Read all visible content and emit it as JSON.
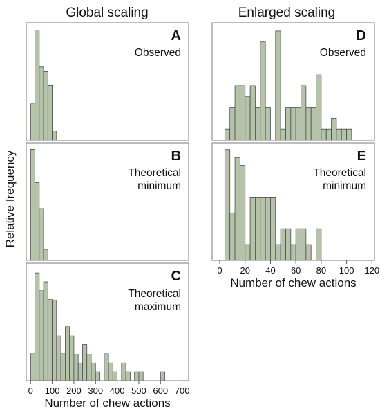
{
  "figure": {
    "left_title": "Global scaling",
    "right_title": "Enlarged scaling",
    "ylabel": "Relative frequency",
    "bar_color": "#b5c3ab",
    "bar_edge": "#4a4a4a"
  },
  "chart_data": [
    {
      "id": "A",
      "type": "bar",
      "letter": "A",
      "label_lines": [
        "Observed"
      ],
      "xlabel": "",
      "xlim": [
        -20,
        730
      ],
      "ymax": 0.25,
      "bin_width": 20,
      "bins": [
        0,
        20,
        40,
        60,
        80,
        100
      ],
      "values": [
        0.08,
        0.24,
        0.16,
        0.15,
        0.12,
        0.02
      ]
    },
    {
      "id": "B",
      "type": "bar",
      "letter": "B",
      "label_lines": [
        "Theoretical",
        "minimum"
      ],
      "xlabel": "",
      "xlim": [
        -20,
        730
      ],
      "ymax": 0.31,
      "bin_width": 20,
      "bins": [
        0,
        20,
        40,
        60
      ],
      "values": [
        0.3,
        0.21,
        0.14,
        0.03
      ]
    },
    {
      "id": "C",
      "type": "bar",
      "letter": "C",
      "label_lines": [
        "Theoretical",
        "maximum"
      ],
      "xlabel": "Number of chew actions",
      "xlim": [
        -20,
        730
      ],
      "ymax": 0.155,
      "bin_width": 20,
      "bins": [
        0,
        20,
        40,
        60,
        80,
        100,
        120,
        140,
        160,
        180,
        200,
        220,
        240,
        260,
        280,
        300,
        320,
        340,
        360,
        380,
        400,
        420,
        440,
        460,
        480,
        500,
        520,
        540,
        560,
        580,
        600,
        620
      ],
      "values": [
        0.0365,
        0.1455,
        0.1215,
        0.1335,
        0.1095,
        0.109,
        0.0605,
        0.0365,
        0.073,
        0.0605,
        0.036,
        0.024,
        0.049,
        0.036,
        0.024,
        0.012,
        0.0,
        0.0365,
        0.024,
        0.012,
        0.0,
        0.024,
        0.012,
        0.0,
        0.012,
        0.012,
        0.0,
        0.0,
        0.0,
        0.0,
        0.012,
        0.0
      ],
      "xticks": [
        0,
        100,
        200,
        300,
        400,
        500,
        600,
        700
      ]
    },
    {
      "id": "D",
      "type": "bar",
      "letter": "D",
      "label_lines": [
        "Observed"
      ],
      "xlabel": "",
      "xlim": [
        -6,
        122
      ],
      "ymax": 0.105,
      "bin_width": 4,
      "bins": [
        4,
        8,
        12,
        16,
        20,
        24,
        28,
        32,
        36,
        40,
        44,
        48,
        52,
        56,
        60,
        64,
        68,
        72,
        76,
        80,
        84,
        88,
        92,
        96,
        100
      ],
      "values": [
        0.01,
        0.03,
        0.05,
        0.05,
        0.04,
        0.05,
        0.03,
        0.09,
        0.03,
        0.0,
        0.1,
        0.01,
        0.03,
        0.03,
        0.03,
        0.05,
        0.03,
        0.03,
        0.06,
        0.01,
        0.01,
        0.02,
        0.01,
        0.01,
        0.01
      ]
    },
    {
      "id": "E",
      "type": "bar",
      "letter": "E",
      "label_lines": [
        "Theoretical",
        "minimum"
      ],
      "xlabel": "Number of chew actions",
      "xlim": [
        -6,
        122
      ],
      "ymax": 0.145,
      "bin_width": 4,
      "bins": [
        4,
        8,
        12,
        16,
        20,
        24,
        28,
        32,
        36,
        40,
        44,
        48,
        52,
        56,
        60,
        64,
        68,
        72,
        76
      ],
      "values": [
        0.14,
        0.06,
        0.13,
        0.12,
        0.02,
        0.08,
        0.08,
        0.08,
        0.08,
        0.08,
        0.02,
        0.04,
        0.04,
        0.02,
        0.04,
        0.04,
        0.02,
        0.0,
        0.04
      ],
      "xticks": [
        0,
        20,
        40,
        60,
        80,
        100,
        120
      ]
    }
  ]
}
